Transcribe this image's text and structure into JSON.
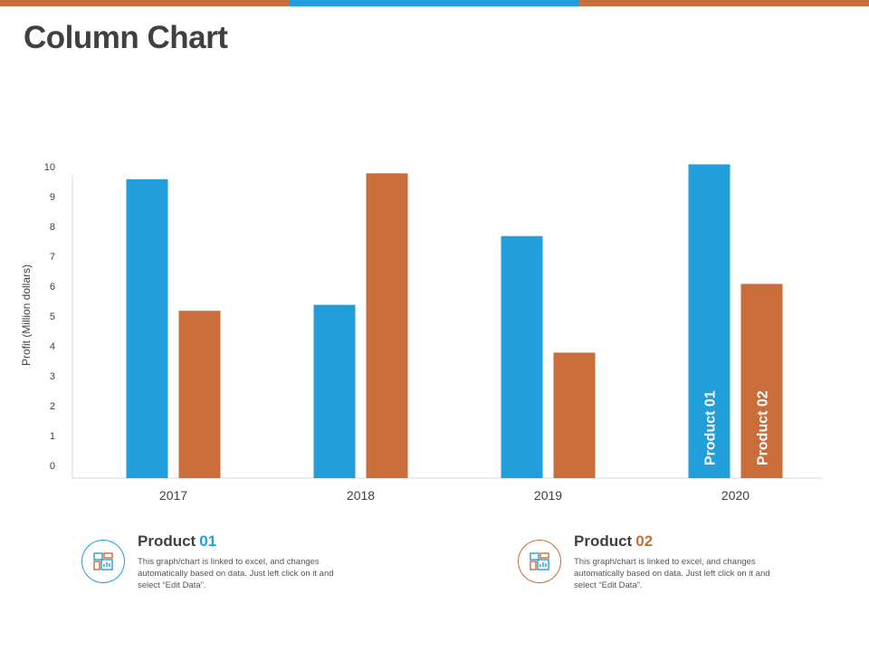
{
  "title": "Column Chart",
  "colors": {
    "product01": "#229fdb",
    "product02": "#c96d3a",
    "text": "#404040",
    "axis": "#d9d9d9"
  },
  "top_bar": [
    "#c96d3a",
    "#229fdb",
    "#c96d3a"
  ],
  "chart_data": {
    "type": "bar",
    "title": "",
    "xlabel": "",
    "ylabel": "Profit  (Million  dollars)",
    "categories": [
      "2017",
      "2018",
      "2019",
      "2020"
    ],
    "yticks": [
      "0",
      "1",
      "2",
      "3",
      "4",
      "5",
      "6",
      "7",
      "8",
      "9",
      "10"
    ],
    "ylim": [
      0,
      10
    ],
    "series": [
      {
        "name": "Product 01",
        "values": [
          10.0,
          5.8,
          8.1,
          10.5
        ]
      },
      {
        "name": "Product 02",
        "values": [
          5.6,
          10.2,
          4.2,
          6.5
        ]
      }
    ],
    "bar_labels": {
      "2020": [
        "Product 01",
        "Product 02"
      ]
    }
  },
  "legend": [
    {
      "icon": "dashboard-chart-icon",
      "title_prefix": "Product",
      "title_num": "01",
      "description": "This graph/chart is linked to excel, and changes automatically based on data. Just left click on it and select “Edit Data”."
    },
    {
      "icon": "dashboard-chart-icon",
      "title_prefix": "Product",
      "title_num": "02",
      "description": "This graph/chart is linked to excel, and changes automatically based on data. Just left click on it and select “Edit Data”."
    }
  ]
}
